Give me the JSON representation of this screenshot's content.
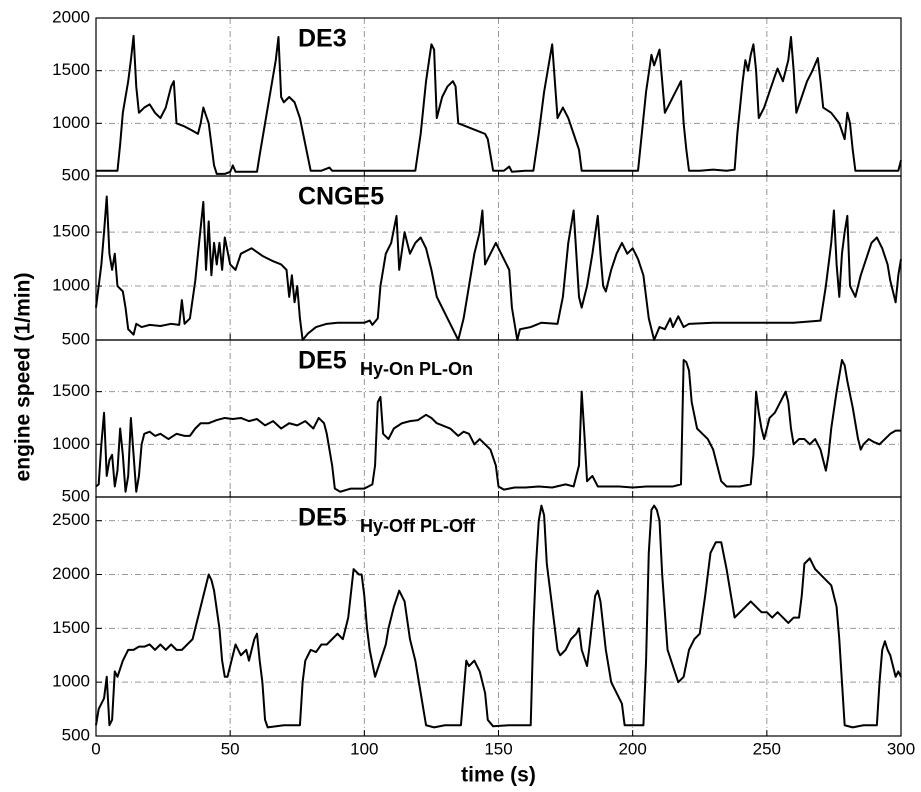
{
  "ylabel": "engine speed (1/min)",
  "chart_data": [
    {
      "type": "line",
      "title": "DE3",
      "color": "#000000",
      "grid": true,
      "xlim": [
        0,
        300
      ],
      "xticks": [
        0,
        50,
        100,
        150,
        200,
        250,
        300
      ],
      "ylim": [
        500,
        2000
      ],
      "yticks": [
        500,
        1000,
        1500,
        2000
      ],
      "x": [
        0,
        5,
        8,
        9,
        10,
        12,
        13,
        14,
        15,
        16,
        18,
        20,
        22,
        24,
        26,
        28,
        29,
        30,
        33,
        36,
        38,
        39,
        40,
        42,
        43,
        44,
        45,
        48,
        50,
        51,
        52,
        56,
        60,
        61,
        63,
        65,
        67,
        68,
        69,
        70,
        72,
        74,
        76,
        78,
        80,
        84,
        87,
        88,
        100,
        110,
        119,
        121,
        123,
        125,
        126,
        127,
        129,
        131,
        133,
        134,
        135,
        138,
        142,
        145,
        146,
        147,
        148,
        152,
        154,
        155,
        160,
        163,
        165,
        167,
        169,
        170,
        172,
        174,
        176,
        178,
        180,
        181,
        185,
        195,
        202,
        203,
        205,
        207,
        208,
        210,
        212,
        214,
        216,
        218,
        219,
        220,
        221,
        225,
        230,
        235,
        238,
        239,
        241,
        242,
        243,
        244,
        245,
        246,
        247,
        249,
        251,
        253,
        254,
        256,
        258,
        259,
        260,
        261,
        263,
        265,
        267,
        269,
        270,
        271,
        274,
        277,
        279,
        280,
        281,
        282,
        283,
        290,
        299,
        300
      ],
      "values": [
        550,
        550,
        550,
        800,
        1100,
        1400,
        1600,
        1830,
        1350,
        1100,
        1150,
        1180,
        1100,
        1050,
        1150,
        1350,
        1400,
        1000,
        970,
        930,
        900,
        1000,
        1150,
        1000,
        800,
        600,
        520,
        520,
        540,
        600,
        540,
        540,
        540,
        700,
        1000,
        1300,
        1600,
        1820,
        1250,
        1200,
        1250,
        1200,
        1050,
        800,
        550,
        550,
        580,
        550,
        550,
        550,
        550,
        900,
        1400,
        1750,
        1700,
        1050,
        1250,
        1350,
        1400,
        1350,
        1000,
        970,
        930,
        900,
        850,
        700,
        550,
        550,
        590,
        540,
        550,
        550,
        900,
        1300,
        1600,
        1750,
        1050,
        1150,
        1050,
        900,
        750,
        550,
        550,
        550,
        550,
        800,
        1300,
        1650,
        1550,
        1700,
        1100,
        1200,
        1300,
        1400,
        1000,
        750,
        550,
        550,
        560,
        550,
        560,
        900,
        1400,
        1600,
        1500,
        1650,
        1750,
        1500,
        1050,
        1150,
        1300,
        1450,
        1520,
        1400,
        1600,
        1820,
        1500,
        1100,
        1250,
        1400,
        1500,
        1620,
        1400,
        1150,
        1100,
        1000,
        850,
        1100,
        1000,
        750,
        550,
        550,
        550,
        650
      ]
    },
    {
      "type": "line",
      "title": "CNGE5",
      "color": "#000000",
      "grid": true,
      "xlim": [
        0,
        300
      ],
      "xticks": [
        0,
        50,
        100,
        150,
        200,
        250,
        300
      ],
      "ylim": [
        500,
        2020
      ],
      "yticks": [
        500,
        1000,
        1500
      ],
      "x": [
        0,
        2,
        3,
        4,
        5,
        6,
        7,
        8,
        10,
        11,
        12,
        14,
        15,
        17,
        20,
        24,
        28,
        31,
        32,
        33,
        35,
        37,
        38,
        40,
        41,
        42,
        43,
        44,
        45,
        46,
        47,
        48,
        50,
        52,
        54,
        58,
        62,
        66,
        69,
        71,
        72,
        73,
        74,
        75,
        76,
        77,
        79,
        82,
        86,
        90,
        95,
        100,
        102,
        103,
        105,
        106,
        108,
        110,
        112,
        113,
        115,
        117,
        119,
        121,
        123,
        125,
        127,
        129,
        131,
        133,
        135,
        137,
        139,
        141,
        143,
        144,
        145,
        147,
        149,
        151,
        153,
        154,
        155,
        157,
        158,
        162,
        166,
        172,
        174,
        176,
        178,
        179,
        180,
        181,
        183,
        185,
        187,
        188,
        189,
        190,
        192,
        194,
        196,
        198,
        200,
        202,
        204,
        206,
        208,
        210,
        212,
        214,
        215,
        217,
        219,
        221,
        230,
        240,
        250,
        260,
        270,
        272,
        274,
        275,
        276,
        277,
        278,
        279,
        280,
        281,
        283,
        285,
        287,
        289,
        291,
        293,
        295,
        296,
        298,
        299,
        300
      ],
      "values": [
        800,
        1200,
        1500,
        1830,
        1300,
        1150,
        1300,
        1000,
        950,
        800,
        600,
        550,
        650,
        620,
        640,
        630,
        650,
        640,
        870,
        650,
        700,
        1050,
        1300,
        1780,
        1150,
        1600,
        1100,
        1400,
        1200,
        1400,
        1150,
        1450,
        1200,
        1150,
        1300,
        1350,
        1280,
        1230,
        1200,
        1150,
        900,
        1100,
        850,
        1000,
        700,
        500,
        560,
        620,
        650,
        660,
        660,
        660,
        680,
        640,
        700,
        1000,
        1300,
        1400,
        1650,
        1150,
        1500,
        1300,
        1400,
        1450,
        1350,
        1150,
        900,
        800,
        700,
        600,
        500,
        700,
        1000,
        1300,
        1500,
        1700,
        1200,
        1300,
        1400,
        1300,
        1200,
        1150,
        800,
        500,
        600,
        620,
        660,
        650,
        900,
        1400,
        1700,
        1300,
        900,
        800,
        1000,
        1300,
        1650,
        1300,
        1000,
        950,
        1150,
        1300,
        1400,
        1300,
        1350,
        1250,
        1100,
        700,
        500,
        620,
        600,
        700,
        620,
        720,
        620,
        650,
        660,
        660,
        660,
        660,
        680,
        1000,
        1400,
        1700,
        1200,
        900,
        1300,
        1500,
        1650,
        1000,
        900,
        1100,
        1250,
        1400,
        1450,
        1350,
        1200,
        1050,
        850,
        1100,
        1250
      ]
    },
    {
      "type": "line",
      "title": "DE5",
      "subtitle": "Hy-On PL-On",
      "color": "#000000",
      "grid": true,
      "xlim": [
        0,
        300
      ],
      "xticks": [
        0,
        50,
        100,
        150,
        200,
        250,
        300
      ],
      "ylim": [
        500,
        1990
      ],
      "yticks": [
        500,
        1000,
        1500
      ],
      "x": [
        0,
        1,
        2,
        3,
        4,
        5,
        6,
        7,
        8,
        9,
        10,
        11,
        12,
        13,
        14,
        15,
        16,
        17,
        18,
        20,
        22,
        24,
        27,
        30,
        33,
        35,
        37,
        39,
        42,
        45,
        48,
        51,
        54,
        57,
        60,
        63,
        66,
        69,
        72,
        75,
        78,
        81,
        83,
        85,
        86,
        88,
        89,
        91,
        95,
        100,
        103,
        104,
        105,
        106,
        107,
        109,
        111,
        114,
        117,
        120,
        123,
        125,
        127,
        129,
        132,
        135,
        137,
        139,
        141,
        143,
        145,
        147,
        149,
        150,
        152,
        156,
        160,
        165,
        170,
        175,
        178,
        180,
        181,
        182,
        183,
        185,
        187,
        190,
        195,
        200,
        205,
        210,
        215,
        218,
        219,
        220,
        221,
        222,
        224,
        226,
        228,
        230,
        232,
        233,
        235,
        240,
        244,
        245,
        246,
        247,
        248,
        249,
        251,
        253,
        255,
        257,
        258,
        259,
        260,
        262,
        264,
        266,
        268,
        270,
        272,
        273,
        274,
        276,
        278,
        279,
        280,
        282,
        284,
        285,
        286,
        288,
        290,
        292,
        294,
        296,
        298,
        300
      ],
      "values": [
        600,
        620,
        1000,
        1300,
        700,
        850,
        900,
        600,
        750,
        1150,
        900,
        550,
        700,
        1250,
        900,
        550,
        700,
        1000,
        1100,
        1120,
        1080,
        1100,
        1050,
        1100,
        1080,
        1080,
        1150,
        1200,
        1200,
        1230,
        1250,
        1240,
        1250,
        1220,
        1240,
        1180,
        1220,
        1150,
        1200,
        1180,
        1220,
        1150,
        1250,
        1200,
        1100,
        800,
        580,
        550,
        580,
        580,
        620,
        800,
        1400,
        1450,
        1100,
        1050,
        1150,
        1200,
        1220,
        1230,
        1280,
        1250,
        1200,
        1180,
        1150,
        1080,
        1120,
        1100,
        1000,
        1050,
        1000,
        950,
        800,
        600,
        570,
        590,
        590,
        600,
        590,
        620,
        600,
        800,
        1500,
        1100,
        650,
        700,
        600,
        600,
        600,
        590,
        600,
        600,
        600,
        620,
        1800,
        1780,
        1700,
        1400,
        1150,
        1100,
        1050,
        950,
        750,
        650,
        600,
        600,
        620,
        900,
        1500,
        1300,
        1150,
        1050,
        1250,
        1300,
        1400,
        1500,
        1400,
        1150,
        1000,
        1050,
        1050,
        1000,
        1050,
        950,
        750,
        900,
        1150,
        1500,
        1800,
        1750,
        1600,
        1350,
        1050,
        950,
        1000,
        1050,
        1020,
        1000,
        1050,
        1100,
        1130,
        1130
      ]
    },
    {
      "type": "line",
      "title": "DE5",
      "subtitle": "Hy-Off PL-Off",
      "xlabel": "time (s)",
      "color": "#000000",
      "grid": true,
      "xlim": [
        0,
        300
      ],
      "xticks": [
        0,
        50,
        100,
        150,
        200,
        250,
        300
      ],
      "ylim": [
        500,
        2720
      ],
      "yticks": [
        500,
        1000,
        1500,
        2000,
        2500
      ],
      "x": [
        0,
        1,
        2,
        3,
        4,
        5,
        6,
        7,
        8,
        10,
        12,
        14,
        16,
        18,
        20,
        22,
        24,
        26,
        28,
        30,
        32,
        34,
        36,
        38,
        40,
        42,
        43,
        44,
        46,
        47,
        48,
        49,
        50,
        52,
        54,
        56,
        57,
        59,
        60,
        61,
        62,
        63,
        64,
        70,
        76,
        77,
        78,
        80,
        82,
        84,
        86,
        88,
        90,
        92,
        94,
        96,
        98,
        99,
        100,
        101,
        102,
        104,
        106,
        108,
        109,
        111,
        113,
        115,
        117,
        119,
        121,
        123,
        126,
        130,
        136,
        137,
        138,
        139,
        141,
        143,
        145,
        146,
        148,
        154,
        160,
        162,
        163,
        164,
        165,
        166,
        167,
        168,
        170,
        172,
        173,
        175,
        177,
        179,
        180,
        181,
        183,
        184,
        186,
        187,
        188,
        190,
        192,
        194,
        196,
        197,
        200,
        204,
        205,
        206,
        207,
        208,
        209,
        210,
        211,
        213,
        215,
        217,
        219,
        221,
        223,
        225,
        227,
        229,
        231,
        233,
        235,
        236,
        238,
        240,
        242,
        244,
        246,
        248,
        250,
        252,
        254,
        256,
        258,
        260,
        262,
        263,
        264,
        266,
        268,
        270,
        272,
        274,
        275,
        276,
        277,
        278,
        279,
        282,
        286,
        291,
        292,
        293,
        294,
        295,
        296,
        297,
        298,
        299,
        300
      ],
      "values": [
        600,
        750,
        800,
        850,
        1050,
        600,
        650,
        1100,
        1050,
        1200,
        1300,
        1300,
        1330,
        1330,
        1350,
        1300,
        1350,
        1300,
        1350,
        1300,
        1300,
        1350,
        1400,
        1600,
        1800,
        2000,
        1950,
        1850,
        1500,
        1200,
        1050,
        1050,
        1150,
        1350,
        1250,
        1300,
        1200,
        1400,
        1450,
        1200,
        1000,
        650,
        580,
        600,
        600,
        1000,
        1200,
        1300,
        1280,
        1350,
        1350,
        1400,
        1450,
        1400,
        1600,
        2050,
        2000,
        2000,
        1800,
        1500,
        1300,
        1050,
        1200,
        1350,
        1500,
        1700,
        1850,
        1750,
        1400,
        1200,
        900,
        600,
        580,
        600,
        600,
        900,
        1200,
        1150,
        1200,
        1100,
        900,
        650,
        590,
        600,
        600,
        600,
        1500,
        2100,
        2500,
        2640,
        2550,
        2100,
        1700,
        1300,
        1250,
        1300,
        1400,
        1450,
        1500,
        1300,
        1150,
        1350,
        1800,
        1850,
        1750,
        1300,
        1000,
        900,
        800,
        600,
        600,
        600,
        1200,
        2200,
        2600,
        2640,
        2600,
        2500,
        2000,
        1300,
        1150,
        1000,
        1050,
        1300,
        1400,
        1450,
        1800,
        2200,
        2300,
        2300,
        2050,
        1900,
        1600,
        1650,
        1700,
        1750,
        1700,
        1650,
        1650,
        1600,
        1650,
        1600,
        1550,
        1600,
        1600,
        1800,
        2100,
        2150,
        2050,
        2000,
        1950,
        1900,
        1800,
        1700,
        1400,
        1000,
        600,
        580,
        600,
        600,
        1000,
        1300,
        1380,
        1300,
        1250,
        1150,
        1050,
        1100,
        1050
      ]
    }
  ]
}
